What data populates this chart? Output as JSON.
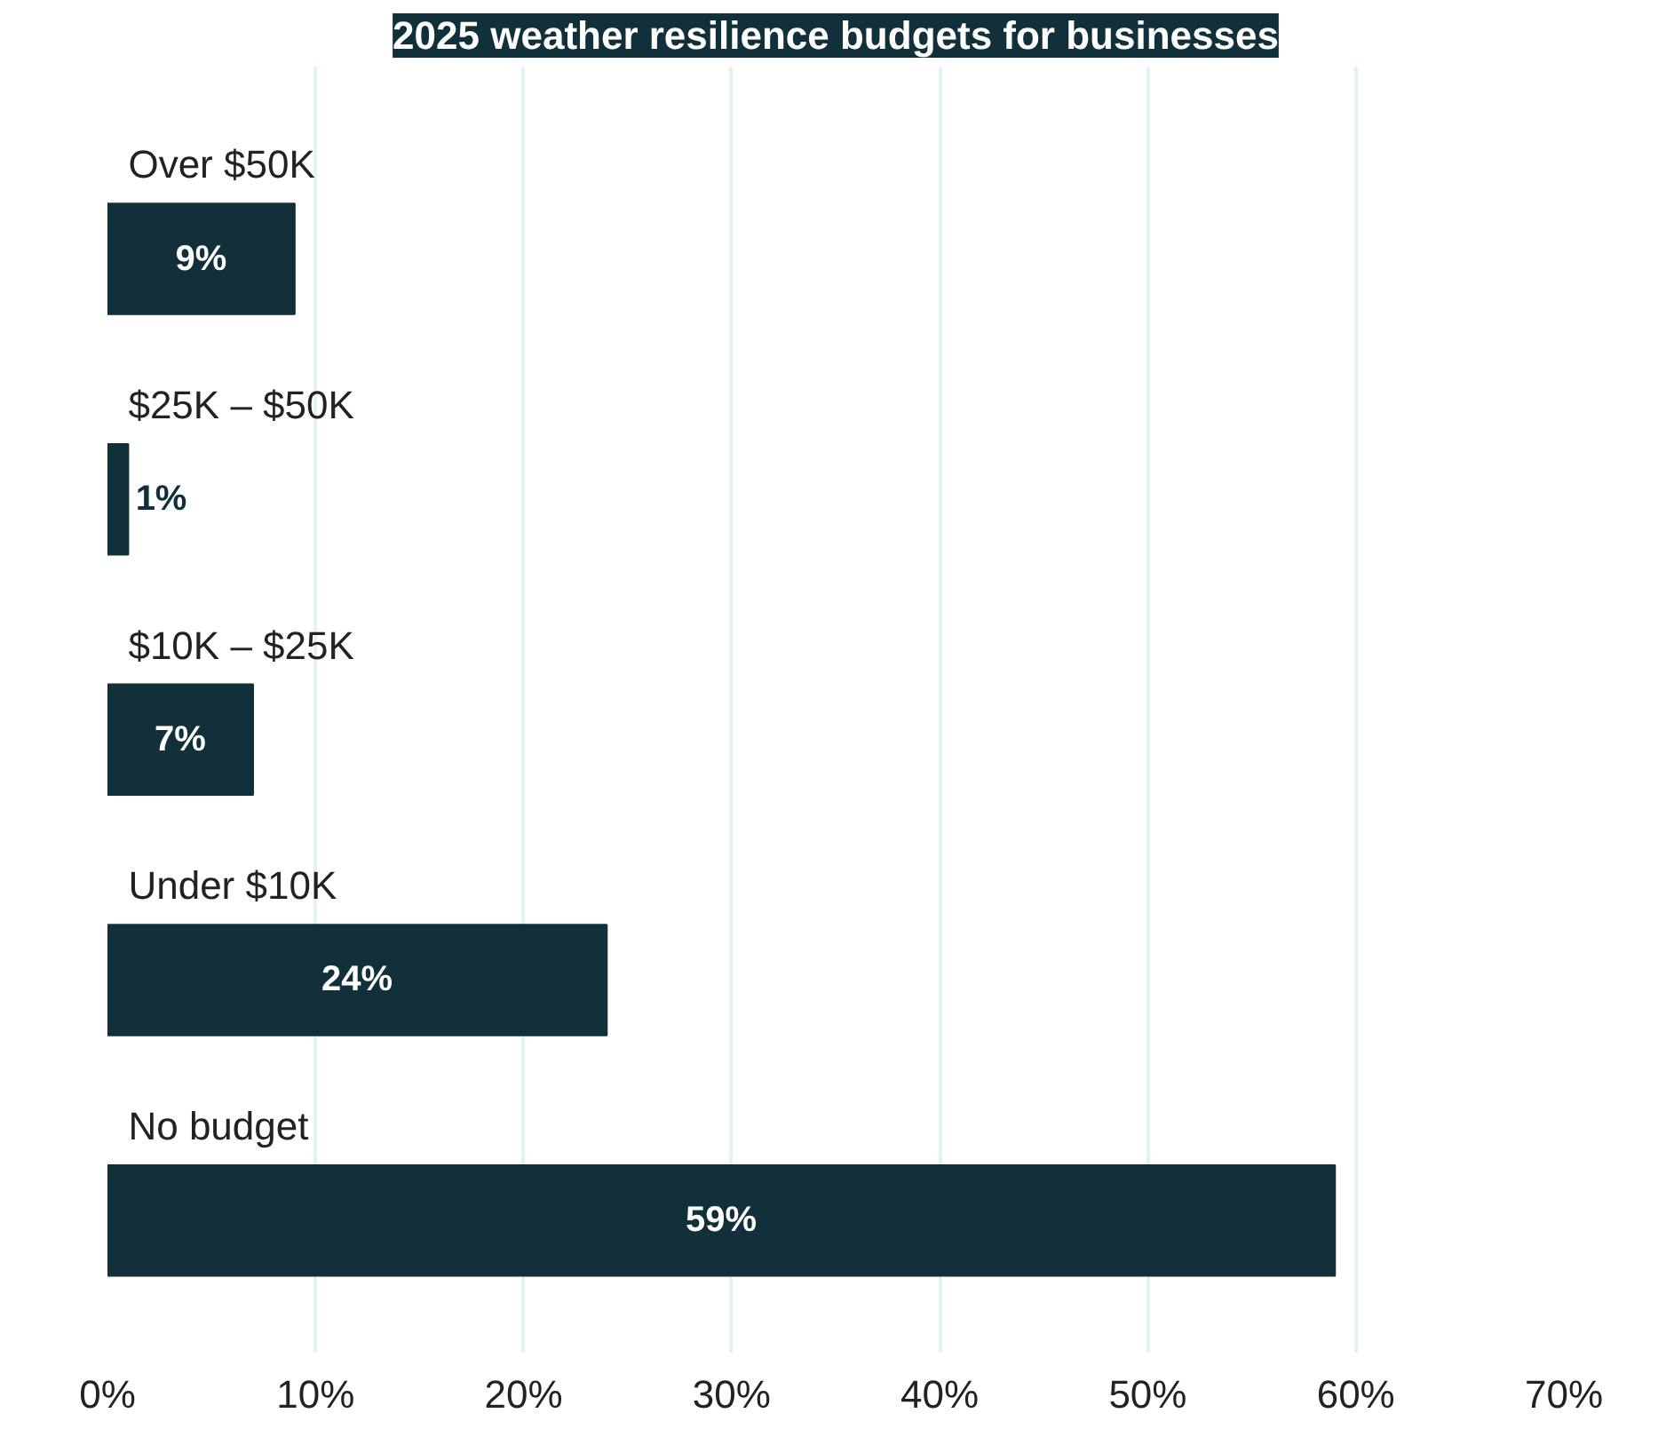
{
  "chart_data": {
    "type": "bar",
    "orientation": "horizontal",
    "title": "2025 weather resilience budgets for businesses",
    "categories": [
      "Over $50K",
      "$25K – $50K",
      "$10K –  $25K",
      "Under $10K",
      "No budget"
    ],
    "values": [
      9,
      1,
      7,
      24,
      59
    ],
    "value_labels": [
      "9%",
      "1%",
      "7%",
      "24%",
      "59%"
    ],
    "color": "#12303a",
    "xlim": [
      0,
      70
    ],
    "xticks": [
      {
        "value": 0,
        "label": "0%"
      },
      {
        "value": 10,
        "label": "10%"
      },
      {
        "value": 20,
        "label": "20%"
      },
      {
        "value": 30,
        "label": "30%"
      },
      {
        "value": 40,
        "label": "40%"
      },
      {
        "value": 50,
        "label": "50%"
      },
      {
        "value": 60,
        "label": "60%"
      },
      {
        "value": 70,
        "label": "70%"
      }
    ],
    "grid": "x"
  }
}
